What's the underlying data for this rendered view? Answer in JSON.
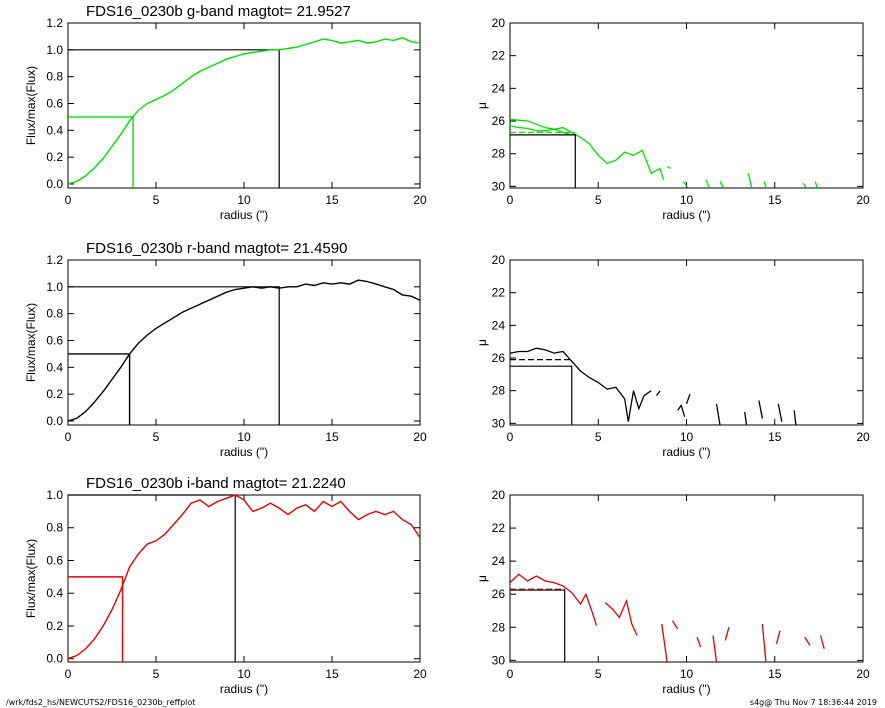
{
  "footer": {
    "path": "/wrk/fds2_hs/NEWCUTS2/FDS16_0230b_reffplot",
    "stamp": "s4g@  Thu Nov  7 18:36:44 2019"
  },
  "colors": {
    "g": "#00e000",
    "r": "#000000",
    "i": "#e00000",
    "axes": "#000000"
  },
  "chart_data": [
    {
      "type": "line",
      "title": "FDS16_0230b g-band  magtot=     21.9527",
      "xlabel": "radius (\")",
      "ylabel": "Flux/max(Flux)",
      "xlim": [
        0,
        20
      ],
      "ylim": [
        -0.03,
        1.2
      ],
      "xticks": [
        0,
        5,
        10,
        15,
        20
      ],
      "yticks": [
        0.0,
        0.2,
        0.4,
        0.6,
        0.8,
        1.0,
        1.2
      ],
      "ytick_labels": [
        "0.0",
        "0.2",
        "0.4",
        "0.6",
        "0.8",
        "1.0",
        "1.2"
      ],
      "color": "g",
      "growth_curve": [
        [
          0,
          0
        ],
        [
          0.5,
          0.02
        ],
        [
          1,
          0.06
        ],
        [
          1.5,
          0.12
        ],
        [
          2,
          0.19
        ],
        [
          2.5,
          0.28
        ],
        [
          3,
          0.37
        ],
        [
          3.5,
          0.47
        ],
        [
          4,
          0.55
        ],
        [
          4.5,
          0.6
        ],
        [
          5,
          0.63
        ],
        [
          5.5,
          0.66
        ],
        [
          6,
          0.7
        ],
        [
          6.5,
          0.75
        ],
        [
          7,
          0.8
        ],
        [
          7.5,
          0.84
        ],
        [
          8,
          0.87
        ],
        [
          8.5,
          0.9
        ],
        [
          9,
          0.93
        ],
        [
          9.5,
          0.95
        ],
        [
          10,
          0.97
        ],
        [
          10.5,
          0.98
        ],
        [
          11,
          0.99
        ],
        [
          11.5,
          1.0
        ],
        [
          12,
          1.0
        ],
        [
          12.5,
          1.01
        ],
        [
          13,
          1.02
        ],
        [
          13.5,
          1.04
        ],
        [
          14,
          1.06
        ],
        [
          14.5,
          1.08
        ],
        [
          15,
          1.07
        ],
        [
          15.5,
          1.05
        ],
        [
          16,
          1.06
        ],
        [
          16.5,
          1.07
        ],
        [
          17,
          1.05
        ],
        [
          17.5,
          1.06
        ],
        [
          18,
          1.08
        ],
        [
          18.5,
          1.07
        ],
        [
          19,
          1.09
        ],
        [
          19.5,
          1.06
        ],
        [
          20,
          1.05
        ]
      ],
      "half_light_radius": 3.7,
      "total_radius": 12.0,
      "half_flux": 0.5,
      "total_flux": 1.0
    },
    {
      "type": "line",
      "title": "",
      "xlabel": "radius (\")",
      "ylabel": "μ",
      "xlim": [
        0,
        20
      ],
      "ylim": [
        30.1,
        20
      ],
      "xticks": [
        0,
        5,
        10,
        15,
        20
      ],
      "yticks": [
        20,
        22,
        24,
        26,
        28,
        30
      ],
      "ytick_labels": [
        "20",
        "22",
        "24",
        "26",
        "28",
        "30"
      ],
      "color": "g",
      "profile_segments": [
        [
          [
            0,
            25.9
          ],
          [
            0.5,
            25.95
          ],
          [
            1,
            26.0
          ],
          [
            1.5,
            26.2
          ],
          [
            2,
            26.4
          ],
          [
            2.5,
            26.5
          ],
          [
            3,
            26.4
          ],
          [
            3.5,
            26.7
          ],
          [
            4,
            27.0
          ],
          [
            4.5,
            27.4
          ],
          [
            5,
            28.1
          ],
          [
            5.5,
            28.6
          ],
          [
            6,
            28.4
          ],
          [
            6.5,
            27.9
          ],
          [
            7,
            28.1
          ],
          [
            7.5,
            27.8
          ],
          [
            8,
            29.2
          ],
          [
            8.5,
            28.9
          ],
          [
            8.7,
            29.6
          ]
        ],
        [
          [
            8.9,
            28.8
          ],
          [
            9.1,
            28.9
          ]
        ],
        [
          [
            9.8,
            29.7
          ],
          [
            10.1,
            30.1
          ]
        ],
        [
          [
            11.1,
            29.6
          ],
          [
            11.3,
            30.1
          ]
        ],
        [
          [
            11.9,
            29.7
          ],
          [
            12.1,
            30.1
          ]
        ],
        [
          [
            13.5,
            29.2
          ],
          [
            13.7,
            30.1
          ]
        ],
        [
          [
            14.4,
            29.7
          ],
          [
            14.5,
            30.1
          ]
        ],
        [
          [
            16.6,
            29.8
          ],
          [
            16.8,
            30.1
          ]
        ],
        [
          [
            17.3,
            29.7
          ],
          [
            17.4,
            30.1
          ]
        ]
      ],
      "profile_segments_alt": [
        [
          [
            0,
            26.3
          ],
          [
            0.5,
            26.4
          ],
          [
            1,
            26.45
          ],
          [
            1.5,
            26.6
          ],
          [
            2,
            26.6
          ],
          [
            2.5,
            26.5
          ],
          [
            3,
            26.7
          ],
          [
            3.5,
            26.85
          ]
        ]
      ],
      "dashed_level": 26.7,
      "half_light_radius": 3.7,
      "mu_half": 26.85
    },
    {
      "type": "line",
      "title": "FDS16_0230b r-band  magtot=     21.4590",
      "xlabel": "radius (\")",
      "ylabel": "Flux/max(Flux)",
      "xlim": [
        0,
        20
      ],
      "ylim": [
        -0.03,
        1.2
      ],
      "xticks": [
        0,
        5,
        10,
        15,
        20
      ],
      "yticks": [
        0.0,
        0.2,
        0.4,
        0.6,
        0.8,
        1.0,
        1.2
      ],
      "ytick_labels": [
        "0.0",
        "0.2",
        "0.4",
        "0.6",
        "0.8",
        "1.0",
        "1.2"
      ],
      "color": "r",
      "growth_curve": [
        [
          0,
          0
        ],
        [
          0.5,
          0.02
        ],
        [
          1,
          0.07
        ],
        [
          1.5,
          0.14
        ],
        [
          2,
          0.22
        ],
        [
          2.5,
          0.31
        ],
        [
          3,
          0.4
        ],
        [
          3.5,
          0.5
        ],
        [
          4,
          0.58
        ],
        [
          4.5,
          0.64
        ],
        [
          5,
          0.69
        ],
        [
          5.5,
          0.73
        ],
        [
          6,
          0.77
        ],
        [
          6.5,
          0.81
        ],
        [
          7,
          0.84
        ],
        [
          7.5,
          0.87
        ],
        [
          8,
          0.9
        ],
        [
          8.5,
          0.93
        ],
        [
          9,
          0.96
        ],
        [
          9.5,
          0.98
        ],
        [
          10,
          0.99
        ],
        [
          10.5,
          1.0
        ],
        [
          11,
          0.99
        ],
        [
          11.5,
          1.0
        ],
        [
          12,
          0.99
        ],
        [
          12.5,
          1.0
        ],
        [
          13,
          1.0
        ],
        [
          13.5,
          1.02
        ],
        [
          14,
          1.01
        ],
        [
          14.5,
          1.03
        ],
        [
          15,
          1.02
        ],
        [
          15.5,
          1.03
        ],
        [
          16,
          1.02
        ],
        [
          16.5,
          1.05
        ],
        [
          17,
          1.04
        ],
        [
          17.5,
          1.02
        ],
        [
          18,
          1.0
        ],
        [
          18.5,
          0.98
        ],
        [
          19,
          0.94
        ],
        [
          19.5,
          0.93
        ],
        [
          20,
          0.9
        ]
      ],
      "half_light_radius": 3.5,
      "total_radius": 12.0,
      "half_flux": 0.5,
      "total_flux": 1.0
    },
    {
      "type": "line",
      "title": "",
      "xlabel": "radius (\")",
      "ylabel": "μ",
      "xlim": [
        0,
        20
      ],
      "ylim": [
        30.1,
        20
      ],
      "xticks": [
        0,
        5,
        10,
        15,
        20
      ],
      "yticks": [
        20,
        22,
        24,
        26,
        28,
        30
      ],
      "ytick_labels": [
        "20",
        "22",
        "24",
        "26",
        "28",
        "30"
      ],
      "color": "r",
      "profile_segments": [
        [
          [
            0,
            25.7
          ],
          [
            0.5,
            25.6
          ],
          [
            1,
            25.6
          ],
          [
            1.5,
            25.4
          ],
          [
            2,
            25.5
          ],
          [
            2.5,
            25.7
          ],
          [
            3,
            25.6
          ],
          [
            3.5,
            26.2
          ],
          [
            4,
            26.8
          ],
          [
            4.5,
            27.2
          ],
          [
            5,
            27.5
          ],
          [
            5.5,
            27.9
          ],
          [
            6,
            27.8
          ],
          [
            6.5,
            28.5
          ],
          [
            6.7,
            29.9
          ],
          [
            7,
            28.0
          ],
          [
            7.3,
            29.1
          ],
          [
            7.6,
            28.3
          ],
          [
            8,
            28.0
          ]
        ],
        [
          [
            8.3,
            28.3
          ],
          [
            8.5,
            28.0
          ]
        ],
        [
          [
            9.5,
            29.2
          ],
          [
            9.7,
            28.9
          ],
          [
            9.9,
            29.6
          ]
        ],
        [
          [
            10.0,
            28.8
          ],
          [
            10.2,
            28.2
          ]
        ],
        [
          [
            11.7,
            28.8
          ],
          [
            11.9,
            30.1
          ]
        ],
        [
          [
            13.3,
            29.3
          ],
          [
            13.4,
            30.1
          ]
        ],
        [
          [
            14.1,
            28.6
          ],
          [
            14.3,
            29.7
          ]
        ],
        [
          [
            15.2,
            28.8
          ],
          [
            15.4,
            29.9
          ]
        ],
        [
          [
            16.1,
            29.2
          ],
          [
            16.2,
            30.1
          ]
        ]
      ],
      "profile_segments_alt": [],
      "dashed_level": 26.1,
      "half_light_radius": 3.5,
      "mu_half": 26.5
    },
    {
      "type": "line",
      "title": "FDS16_0230b i-band  magtot=     21.2240",
      "xlabel": "radius (\")",
      "ylabel": "Flux/max(Flux)",
      "xlim": [
        0,
        20
      ],
      "ylim": [
        -0.02,
        1.0
      ],
      "xticks": [
        0,
        5,
        10,
        15,
        20
      ],
      "yticks": [
        0.0,
        0.2,
        0.4,
        0.6,
        0.8,
        1.0
      ],
      "ytick_labels": [
        "0.0",
        "0.2",
        "0.4",
        "0.6",
        "0.8",
        "1.0"
      ],
      "color": "i",
      "growth_curve": [
        [
          0,
          0
        ],
        [
          0.5,
          0.02
        ],
        [
          1,
          0.06
        ],
        [
          1.5,
          0.12
        ],
        [
          2,
          0.2
        ],
        [
          2.5,
          0.3
        ],
        [
          3,
          0.42
        ],
        [
          3.5,
          0.56
        ],
        [
          4,
          0.64
        ],
        [
          4.5,
          0.7
        ],
        [
          5,
          0.72
        ],
        [
          5.5,
          0.76
        ],
        [
          6,
          0.82
        ],
        [
          6.5,
          0.88
        ],
        [
          7,
          0.95
        ],
        [
          7.5,
          0.97
        ],
        [
          8,
          0.93
        ],
        [
          8.5,
          0.96
        ],
        [
          9,
          0.98
        ],
        [
          9.5,
          1.0
        ],
        [
          10,
          0.97
        ],
        [
          10.5,
          0.9
        ],
        [
          11,
          0.92
        ],
        [
          11.5,
          0.95
        ],
        [
          12,
          0.92
        ],
        [
          12.5,
          0.88
        ],
        [
          13,
          0.92
        ],
        [
          13.5,
          0.94
        ],
        [
          14,
          0.9
        ],
        [
          14.5,
          0.96
        ],
        [
          15,
          0.93
        ],
        [
          15.5,
          0.96
        ],
        [
          16,
          0.9
        ],
        [
          16.5,
          0.85
        ],
        [
          17,
          0.88
        ],
        [
          17.5,
          0.9
        ],
        [
          18,
          0.88
        ],
        [
          18.5,
          0.9
        ],
        [
          19,
          0.85
        ],
        [
          19.5,
          0.82
        ],
        [
          20,
          0.74
        ]
      ],
      "half_light_radius": 3.1,
      "total_radius": 9.5,
      "half_flux": 0.5,
      "total_flux": 1.0
    },
    {
      "type": "line",
      "title": "",
      "xlabel": "radius (\")",
      "ylabel": "μ",
      "xlim": [
        0,
        20
      ],
      "ylim": [
        30.1,
        20
      ],
      "xticks": [
        0,
        5,
        10,
        15,
        20
      ],
      "yticks": [
        20,
        22,
        24,
        26,
        28,
        30
      ],
      "ytick_labels": [
        "20",
        "22",
        "24",
        "26",
        "28",
        "30"
      ],
      "color": "i",
      "profile_segments": [
        [
          [
            0,
            25.3
          ],
          [
            0.5,
            24.8
          ],
          [
            1,
            25.2
          ],
          [
            1.5,
            24.9
          ],
          [
            2,
            25.2
          ],
          [
            2.5,
            25.3
          ],
          [
            3,
            25.5
          ],
          [
            3.5,
            25.9
          ],
          [
            4,
            26.6
          ],
          [
            4.3,
            26.0
          ],
          [
            4.6,
            26.9
          ],
          [
            4.9,
            27.9
          ]
        ],
        [
          [
            5.4,
            26.5
          ],
          [
            5.8,
            26.9
          ],
          [
            6.2,
            27.4
          ],
          [
            6.6,
            26.4
          ],
          [
            6.9,
            27.8
          ],
          [
            7.2,
            28.5
          ]
        ],
        [
          [
            8.6,
            27.8
          ],
          [
            8.9,
            30.1
          ]
        ],
        [
          [
            9.2,
            27.6
          ],
          [
            9.5,
            28.1
          ]
        ],
        [
          [
            10.6,
            28.6
          ],
          [
            10.8,
            29.2
          ]
        ],
        [
          [
            11.5,
            28.5
          ],
          [
            11.7,
            30.1
          ]
        ],
        [
          [
            12.2,
            28.8
          ],
          [
            12.4,
            28.0
          ]
        ],
        [
          [
            14.3,
            27.8
          ],
          [
            14.5,
            30.1
          ]
        ],
        [
          [
            15.1,
            29.0
          ],
          [
            15.3,
            28.2
          ]
        ],
        [
          [
            16.7,
            28.6
          ],
          [
            17.0,
            29.1
          ]
        ],
        [
          [
            17.6,
            28.5
          ],
          [
            17.8,
            29.3
          ]
        ]
      ],
      "profile_segments_alt": [],
      "dashed_level": 25.7,
      "half_light_radius": 3.1,
      "mu_half": 25.75
    }
  ]
}
